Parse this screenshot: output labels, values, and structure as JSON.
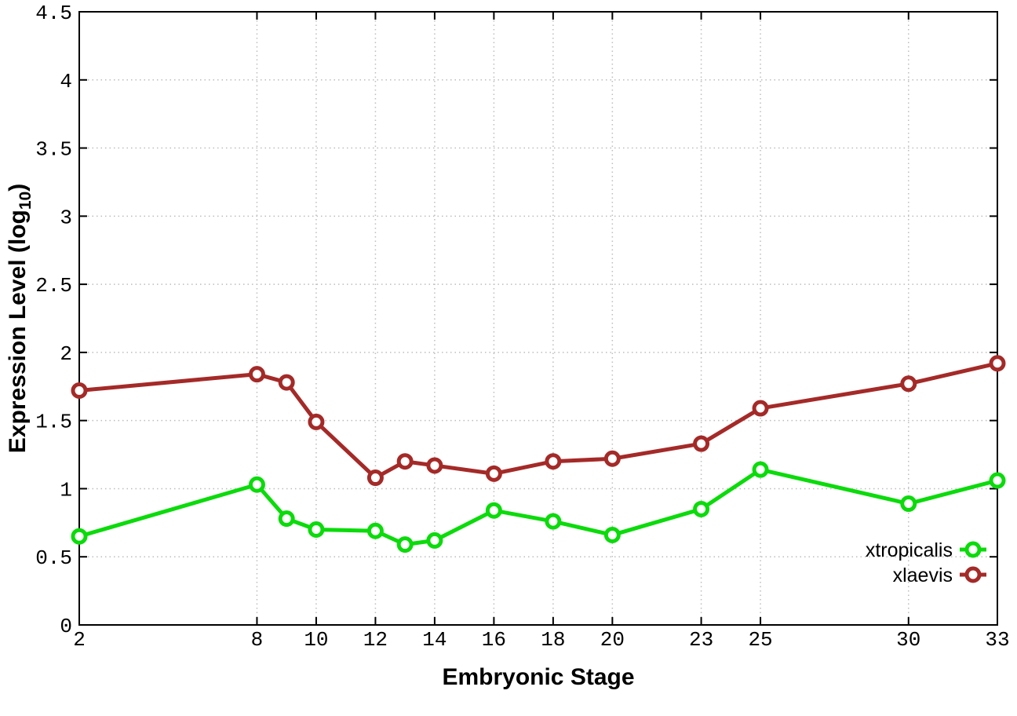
{
  "page": {
    "background": "#ffffff"
  },
  "chart_data": {
    "type": "line",
    "title": "",
    "xlabel": "Embryonic Stage",
    "ylabel": {
      "prefix": "Expression Level (log",
      "sub": "10",
      "suffix": ")"
    },
    "x": [
      2,
      8,
      9,
      10,
      12,
      13,
      14,
      16,
      18,
      20,
      23,
      25,
      30,
      33
    ],
    "series": [
      {
        "name": "xtropicalis",
        "color": "#0bdb0b",
        "values": [
          0.65,
          1.03,
          0.78,
          0.7,
          0.69,
          0.59,
          0.62,
          0.84,
          0.76,
          0.66,
          0.85,
          1.14,
          0.89,
          1.06
        ]
      },
      {
        "name": "xlaevis",
        "color": "#a42a28",
        "values": [
          1.72,
          1.84,
          1.78,
          1.49,
          1.08,
          1.2,
          1.17,
          1.11,
          1.2,
          1.22,
          1.33,
          1.59,
          1.77,
          1.92
        ]
      }
    ],
    "xticks": [
      2,
      8,
      10,
      12,
      14,
      16,
      18,
      20,
      23,
      25,
      30,
      33
    ],
    "xlim": [
      2,
      33
    ],
    "ylim": [
      0,
      4.5
    ],
    "ytick_step": 0.5,
    "grid": true,
    "grid_color": "#bdbdbd",
    "axis_color": "#000000",
    "marker": "open-circle",
    "legend_position": "inside-bottom-right"
  }
}
